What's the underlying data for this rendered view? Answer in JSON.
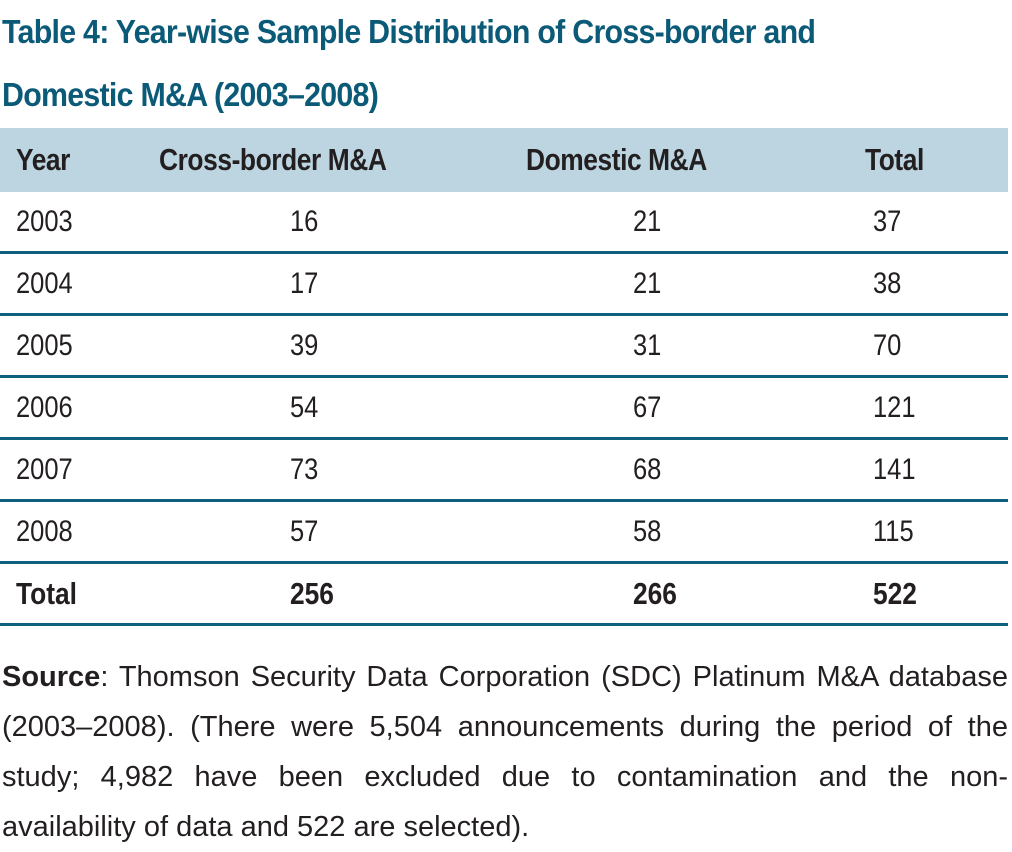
{
  "title": "Table 4: Year-wise Sample Distribution of Cross-border and Domestic M&A (2003–2008)",
  "colors": {
    "title": "#0b5a78",
    "header_bg": "#bcd5e1",
    "rule": "#0f607e",
    "text": "#231f20"
  },
  "table": {
    "headers": [
      "Year",
      "Cross-border M&A",
      "Domestic M&A",
      "Total"
    ],
    "rows": [
      [
        "2003",
        "16",
        "21",
        "37"
      ],
      [
        "2004",
        "17",
        "21",
        "38"
      ],
      [
        "2005",
        "39",
        "31",
        "70"
      ],
      [
        "2006",
        "54",
        "67",
        "121"
      ],
      [
        "2007",
        "73",
        "68",
        "141"
      ],
      [
        "2008",
        "57",
        "58",
        "115"
      ]
    ],
    "total_row": [
      "Total",
      "256",
      "266",
      "522"
    ]
  },
  "note": {
    "label": "Source",
    "text": ": Thomson Security Data Corporation (SDC) Platinum M&A database (2003–2008). (There were 5,504 announcements during the period of the study; 4,982 have been excluded due to contamination and the non-availability of data and 522 are selected)."
  }
}
